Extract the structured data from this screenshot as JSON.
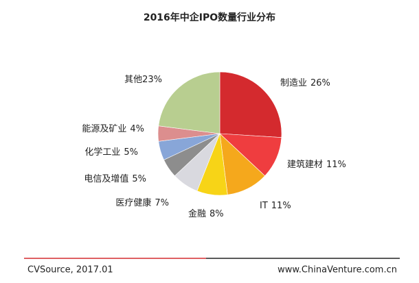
{
  "chart_data": {
    "type": "pie",
    "title": "2016年中企IPO数量行业分布",
    "categories": [
      "制造业",
      "建筑建材",
      "IT",
      "金融",
      "医疗健康",
      "电信及增值",
      "化学工业",
      "能源及矿业",
      "其他"
    ],
    "values": [
      26,
      11,
      11,
      8,
      7,
      5,
      5,
      4,
      23
    ],
    "value_labels": [
      "26%",
      "11%",
      "11%",
      "8%",
      "7%",
      "5%",
      "5%",
      "4%",
      "23%"
    ],
    "colors": [
      "#d42a2e",
      "#ef3d3f",
      "#f5a81c",
      "#f7d417",
      "#d9d9df",
      "#8d8d8d",
      "#88a6d8",
      "#dc8e8e",
      "#b8ce90"
    ]
  },
  "footer": {
    "source": "CVSource, 2017.01",
    "website": "www.ChinaVenture.com.cn"
  }
}
